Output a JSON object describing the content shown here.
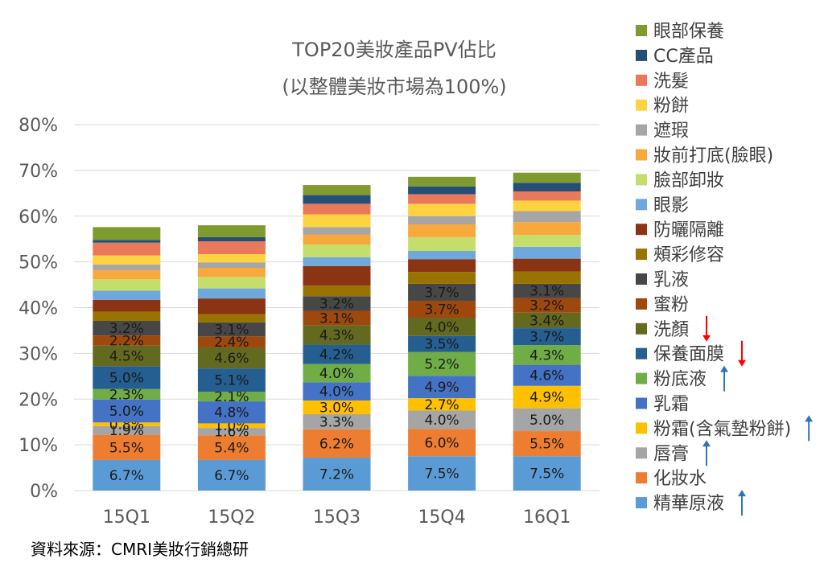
{
  "chart_data": {
    "type": "bar",
    "stacked": true,
    "title": "TOP20美妝產品PV佔比",
    "subtitle": "(以整體美妝市場為100%)",
    "categories": [
      "15Q1",
      "15Q2",
      "15Q3",
      "15Q4",
      "16Q1"
    ],
    "ylim": [
      0,
      80
    ],
    "yticks": [
      "0%",
      "10%",
      "20%",
      "30%",
      "40%",
      "50%",
      "60%",
      "70%",
      "80%"
    ],
    "grid": true,
    "legend_position": "right",
    "series": [
      {
        "name": "精華原液",
        "color": "#5B9BD5",
        "values": [
          6.7,
          6.7,
          7.2,
          7.5,
          7.5
        ],
        "labels": [
          "6.7%",
          "6.7%",
          "7.2%",
          "7.5%",
          "7.5%"
        ]
      },
      {
        "name": "化妝水",
        "color": "#ED7D31",
        "values": [
          5.5,
          5.4,
          6.2,
          6.0,
          5.5
        ],
        "labels": [
          "5.5%",
          "5.4%",
          "6.2%",
          "6.0%",
          "5.5%"
        ]
      },
      {
        "name": "唇膏",
        "color": "#A5A5A5",
        "values": [
          1.9,
          1.6,
          3.3,
          4.0,
          5.0
        ],
        "labels": [
          "1.9%",
          "1.6%",
          "3.3%",
          "4.0%",
          "5.0%"
        ]
      },
      {
        "name": "粉霜(含氣墊粉餅)",
        "color": "#FFC000",
        "values": [
          0.8,
          1.0,
          3.0,
          2.7,
          4.9
        ],
        "labels": [
          "0.8%",
          "1.0%",
          "3.0%",
          "2.7%",
          "4.9%"
        ]
      },
      {
        "name": "乳霜",
        "color": "#4472C4",
        "values": [
          5.0,
          4.8,
          4.0,
          4.9,
          4.6
        ],
        "labels": [
          "5.0%",
          "4.8%",
          "4.0%",
          "4.9%",
          "4.6%"
        ]
      },
      {
        "name": "粉底液",
        "color": "#70AD47",
        "values": [
          2.3,
          2.1,
          4.0,
          5.2,
          4.3
        ],
        "labels": [
          "2.3%",
          "2.1%",
          "4.0%",
          "5.2%",
          "4.3%"
        ]
      },
      {
        "name": "保養面膜",
        "color": "#255E91",
        "values": [
          5.0,
          5.1,
          4.2,
          3.5,
          3.7
        ],
        "labels": [
          "5.0%",
          "5.1%",
          "4.2%",
          "3.5%",
          "3.7%"
        ]
      },
      {
        "name": "洗顏",
        "color": "#636A1F",
        "values": [
          4.5,
          4.6,
          4.3,
          4.0,
          3.4
        ],
        "labels": [
          "4.5%",
          "4.6%",
          "4.3%",
          "4.0%",
          "3.4%"
        ]
      },
      {
        "name": "蜜粉",
        "color": "#9E480E",
        "values": [
          2.2,
          2.4,
          3.1,
          3.7,
          3.2
        ],
        "labels": [
          "2.2%",
          "2.4%",
          "3.1%",
          "3.7%",
          "3.2%"
        ]
      },
      {
        "name": "乳液",
        "color": "#474747",
        "values": [
          3.2,
          3.1,
          3.2,
          3.7,
          3.1
        ],
        "labels": [
          "3.2%",
          "3.1%",
          "3.2%",
          "3.7%",
          "3.1%"
        ]
      },
      {
        "name": "頰彩修容",
        "color": "#997300",
        "values": [
          2.0,
          1.8,
          2.3,
          2.6,
          2.7
        ],
        "labels": [
          "",
          "",
          "",
          "",
          ""
        ]
      },
      {
        "name": "防曬隔離",
        "color": "#8B3414",
        "values": [
          2.6,
          3.4,
          4.3,
          2.8,
          2.8
        ],
        "labels": [
          "",
          "",
          "",
          "",
          ""
        ]
      },
      {
        "name": "眼影",
        "color": "#6FA8DC",
        "values": [
          2.0,
          2.2,
          1.9,
          1.8,
          2.6
        ],
        "labels": [
          "",
          "",
          "",
          "",
          ""
        ]
      },
      {
        "name": "臉部卸妝",
        "color": "#C5DE6B",
        "values": [
          2.5,
          2.5,
          2.8,
          3.0,
          2.6
        ],
        "labels": [
          "",
          "",
          "",
          "",
          ""
        ]
      },
      {
        "name": "妝前打底(臉眼)",
        "color": "#F9A83B",
        "values": [
          2.0,
          2.0,
          2.2,
          2.8,
          2.8
        ],
        "labels": [
          "",
          "",
          "",
          "",
          ""
        ]
      },
      {
        "name": "遮瑕",
        "color": "#A6A6A6",
        "values": [
          1.2,
          1.2,
          1.6,
          1.8,
          2.4
        ],
        "labels": [
          "",
          "",
          "",
          "",
          ""
        ]
      },
      {
        "name": "粉餅",
        "color": "#FFD23F",
        "values": [
          2.0,
          1.8,
          2.8,
          2.7,
          2.3
        ],
        "labels": [
          "",
          "",
          "",
          "",
          ""
        ]
      },
      {
        "name": "洗髮",
        "color": "#E9795A",
        "values": [
          2.8,
          2.8,
          2.3,
          2.1,
          2.0
        ],
        "labels": [
          "",
          "",
          "",
          "",
          ""
        ]
      },
      {
        "name": "CC產品",
        "color": "#264F78",
        "values": [
          0.6,
          0.9,
          1.9,
          1.7,
          1.9
        ],
        "labels": [
          "",
          "",
          "",
          "",
          ""
        ]
      },
      {
        "name": "眼部保養",
        "color": "#7F9A2E",
        "values": [
          2.8,
          2.6,
          2.2,
          2.1,
          2.2
        ],
        "labels": [
          "",
          "",
          "",
          "",
          ""
        ]
      }
    ],
    "arrows": [
      {
        "series": "保養面膜",
        "direction": "down",
        "color": "#FF0000"
      },
      {
        "series": "洗顏",
        "direction": "down",
        "color": "#FF0000"
      },
      {
        "series": "粉底液",
        "direction": "up",
        "color": "#2E75B6"
      },
      {
        "series": "粉霜(含氣墊粉餅)",
        "direction": "up",
        "color": "#2E75B6"
      },
      {
        "series": "唇膏",
        "direction": "up",
        "color": "#2E75B6"
      },
      {
        "series": "精華原液",
        "direction": "up",
        "color": "#2E75B6"
      }
    ]
  },
  "source": "資料來源：CMRI美妝行銷總研"
}
